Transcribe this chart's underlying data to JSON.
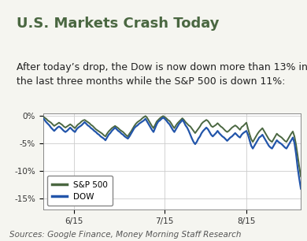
{
  "title": "U.S. Markets Crash Today",
  "subtitle": "After today’s drop, the Dow is now down more than 13% in\nthe last three months while the S&P 500 is down 11%:",
  "source": "Sources: Google Finance, Money Morning Staff Research",
  "sp500_color": "#4a6741",
  "dow_color": "#2255aa",
  "background_color": "#f5f5f0",
  "plot_bg_color": "#ffffff",
  "grid_color": "#cccccc",
  "border_color": "#4a6741",
  "ylim": [
    -17,
    0.5
  ],
  "yticks": [
    0,
    -5,
    -10,
    -15
  ],
  "ytick_labels": [
    "0%",
    "-5%",
    "-10%",
    "-15%"
  ],
  "xtick_labels": [
    "6/15",
    "7/15",
    "8/15"
  ],
  "xtick_positions": [
    0.12,
    0.47,
    0.79
  ],
  "title_color": "#4a6741",
  "title_fontsize": 13,
  "subtitle_fontsize": 9,
  "source_fontsize": 7.5,
  "sp500_data": [
    -0.1,
    -0.3,
    -0.5,
    -0.8,
    -1.0,
    -1.2,
    -1.5,
    -1.8,
    -1.6,
    -1.4,
    -1.2,
    -1.4,
    -1.6,
    -1.9,
    -2.1,
    -1.9,
    -1.7,
    -1.5,
    -1.7,
    -2.0,
    -2.2,
    -1.8,
    -1.5,
    -1.3,
    -1.0,
    -0.8,
    -0.7,
    -0.9,
    -1.1,
    -1.3,
    -1.6,
    -1.8,
    -2.1,
    -2.4,
    -2.6,
    -2.8,
    -3.0,
    -3.2,
    -3.5,
    -3.7,
    -3.2,
    -2.8,
    -2.5,
    -2.2,
    -2.0,
    -1.8,
    -2.0,
    -2.2,
    -2.5,
    -2.7,
    -2.9,
    -3.2,
    -3.5,
    -3.7,
    -3.2,
    -2.8,
    -2.3,
    -1.8,
    -1.4,
    -1.1,
    -0.9,
    -0.7,
    -0.4,
    -0.2,
    0.0,
    -0.3,
    -0.8,
    -1.3,
    -1.8,
    -2.2,
    -1.6,
    -1.0,
    -0.7,
    -0.4,
    -0.2,
    0.0,
    -0.2,
    -0.4,
    -0.7,
    -0.9,
    -1.3,
    -1.8,
    -2.2,
    -1.7,
    -1.3,
    -1.0,
    -0.7,
    -0.4,
    -0.7,
    -1.1,
    -1.4,
    -1.7,
    -1.9,
    -2.3,
    -2.7,
    -3.1,
    -2.7,
    -2.3,
    -1.9,
    -1.4,
    -1.1,
    -0.9,
    -0.7,
    -0.9,
    -1.3,
    -1.8,
    -2.0,
    -1.8,
    -1.6,
    -1.3,
    -1.6,
    -1.9,
    -2.1,
    -2.4,
    -2.7,
    -2.9,
    -2.7,
    -2.4,
    -2.1,
    -1.9,
    -1.7,
    -1.9,
    -2.2,
    -2.5,
    -2.0,
    -1.8,
    -1.5,
    -1.2,
    -2.3,
    -3.3,
    -4.2,
    -4.7,
    -4.2,
    -3.7,
    -3.2,
    -2.8,
    -2.5,
    -2.2,
    -2.7,
    -3.2,
    -3.7,
    -4.2,
    -4.5,
    -4.7,
    -4.2,
    -3.7,
    -3.2,
    -3.5,
    -3.7,
    -3.9,
    -4.2,
    -4.5,
    -4.7,
    -4.2,
    -3.7,
    -3.2,
    -2.8,
    -3.7,
    -5.2,
    -7.2,
    -9.2,
    -11.0
  ],
  "dow_data": [
    -0.4,
    -0.7,
    -1.1,
    -1.4,
    -1.7,
    -2.1,
    -2.4,
    -2.7,
    -2.4,
    -2.1,
    -1.9,
    -2.1,
    -2.4,
    -2.7,
    -2.9,
    -2.7,
    -2.4,
    -2.1,
    -2.4,
    -2.7,
    -2.9,
    -2.4,
    -2.1,
    -1.9,
    -1.7,
    -1.4,
    -1.1,
    -1.4,
    -1.7,
    -1.9,
    -2.2,
    -2.4,
    -2.7,
    -2.9,
    -3.2,
    -3.4,
    -3.7,
    -3.9,
    -4.1,
    -4.4,
    -3.9,
    -3.4,
    -3.1,
    -2.7,
    -2.4,
    -2.1,
    -2.4,
    -2.7,
    -2.9,
    -3.2,
    -3.4,
    -3.7,
    -3.9,
    -4.1,
    -3.7,
    -3.2,
    -2.7,
    -2.2,
    -1.9,
    -1.7,
    -1.4,
    -1.2,
    -1.0,
    -0.8,
    -0.5,
    -1.0,
    -1.5,
    -2.0,
    -2.5,
    -2.9,
    -2.2,
    -1.5,
    -1.0,
    -0.8,
    -0.5,
    -0.3,
    -0.5,
    -0.8,
    -1.2,
    -1.5,
    -2.0,
    -2.5,
    -2.9,
    -2.4,
    -1.9,
    -1.4,
    -1.1,
    -0.7,
    -1.1,
    -1.7,
    -2.1,
    -2.7,
    -3.4,
    -4.1,
    -4.7,
    -5.1,
    -4.7,
    -4.1,
    -3.7,
    -3.1,
    -2.7,
    -2.4,
    -2.1,
    -2.4,
    -2.9,
    -3.4,
    -3.7,
    -3.4,
    -3.1,
    -2.7,
    -3.1,
    -3.4,
    -3.7,
    -3.9,
    -4.2,
    -4.5,
    -4.2,
    -3.9,
    -3.7,
    -3.4,
    -3.1,
    -3.4,
    -3.7,
    -3.9,
    -3.4,
    -3.1,
    -2.9,
    -2.7,
    -3.4,
    -4.4,
    -5.4,
    -5.9,
    -5.4,
    -4.9,
    -4.4,
    -3.9,
    -3.7,
    -3.4,
    -3.9,
    -4.4,
    -4.9,
    -5.4,
    -5.7,
    -5.9,
    -5.4,
    -4.9,
    -4.4,
    -4.7,
    -4.9,
    -5.1,
    -5.4,
    -5.7,
    -5.9,
    -5.4,
    -4.9,
    -4.4,
    -3.9,
    -4.9,
    -6.9,
    -9.4,
    -11.4,
    -13.2
  ]
}
